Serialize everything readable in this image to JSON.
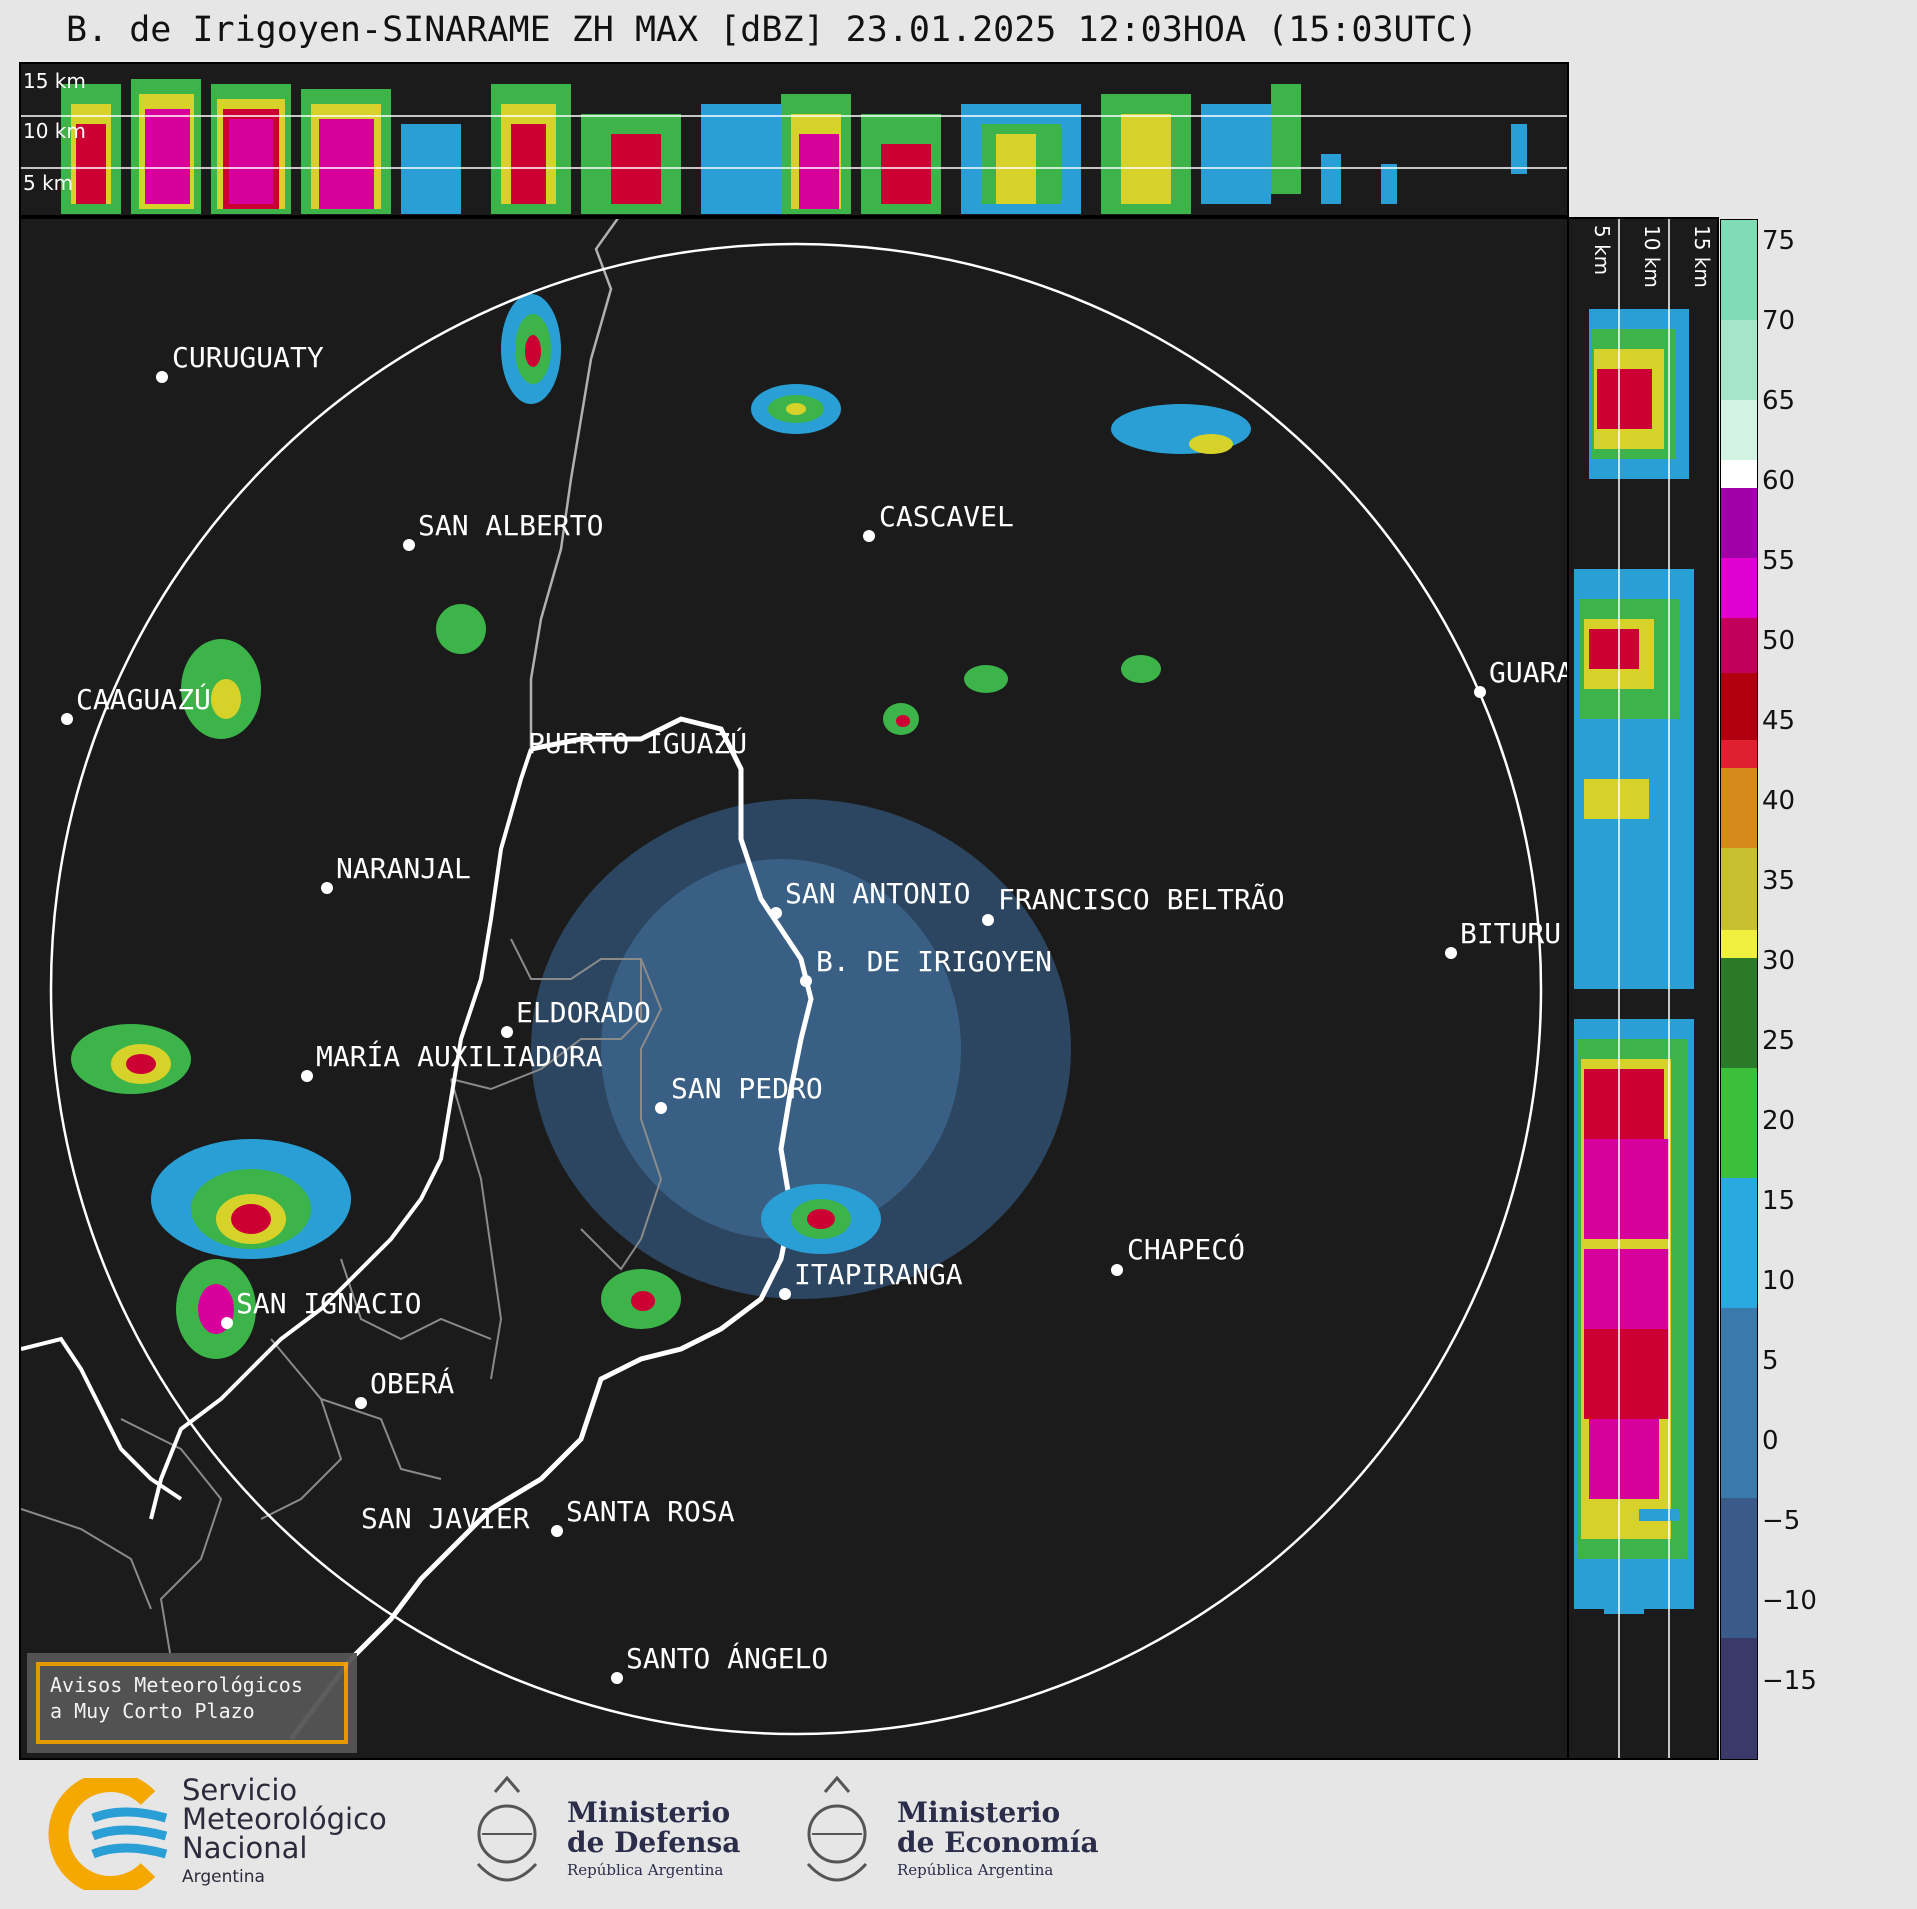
{
  "title": "B. de Irigoyen-SINARAME ZH MAX [dBZ] 23.01.2025 12:03HOA (15:03UTC)",
  "top_strip": {
    "km_labels": [
      "15 km",
      "10 km",
      "5 km"
    ]
  },
  "side_strip": {
    "km_labels": [
      "5 km",
      "10 km",
      "15 km"
    ]
  },
  "colorbar": {
    "ticks": [
      "75",
      "70",
      "65",
      "60",
      "55",
      "50",
      "45",
      "40",
      "35",
      "30",
      "25",
      "20",
      "15",
      "10",
      "5",
      "0",
      "−5",
      "−10",
      "−15"
    ],
    "range": [
      -20,
      77
    ]
  },
  "cities": [
    {
      "name": "CURUGUATY"
    },
    {
      "name": "SAN ALBERTO"
    },
    {
      "name": "CASCAVEL"
    },
    {
      "name": "CAAGUAZÚ"
    },
    {
      "name": "GUARA"
    },
    {
      "name": "PUERTO IGUAZÚ"
    },
    {
      "name": "NARANJAL"
    },
    {
      "name": "SAN ANTONIO"
    },
    {
      "name": "FRANCISCO BELTRÃO"
    },
    {
      "name": "BITURU"
    },
    {
      "name": "B. DE IRIGOYEN"
    },
    {
      "name": "ELDORADO"
    },
    {
      "name": "MARÍA AUXILIADORA"
    },
    {
      "name": "SAN PEDRO"
    },
    {
      "name": "CHAPECÓ"
    },
    {
      "name": "ITAPIRANGA"
    },
    {
      "name": "SAN IGNACIO"
    },
    {
      "name": "OBERÁ"
    },
    {
      "name": "SAN JAVIER"
    },
    {
      "name": "SANTA ROSA"
    },
    {
      "name": "SANTO ÁNGELO"
    }
  ],
  "aviso": {
    "line1": "Avisos Meteorológicos",
    "line2": "a Muy Corto Plazo"
  },
  "footer": {
    "smn": {
      "line1": "Servicio",
      "line2": "Meteorológico",
      "line3": "Nacional",
      "line4": "Argentina"
    },
    "defensa": {
      "line1": "Ministerio",
      "line2": "de Defensa",
      "sub": "República Argentina"
    },
    "economia": {
      "line1": "Ministerio",
      "line2": "de Economía",
      "sub": "República Argentina"
    }
  },
  "colors": {
    "background": "#1b1b1b",
    "range_ring": "#ffffff",
    "aviso_border": "#f0a000"
  }
}
